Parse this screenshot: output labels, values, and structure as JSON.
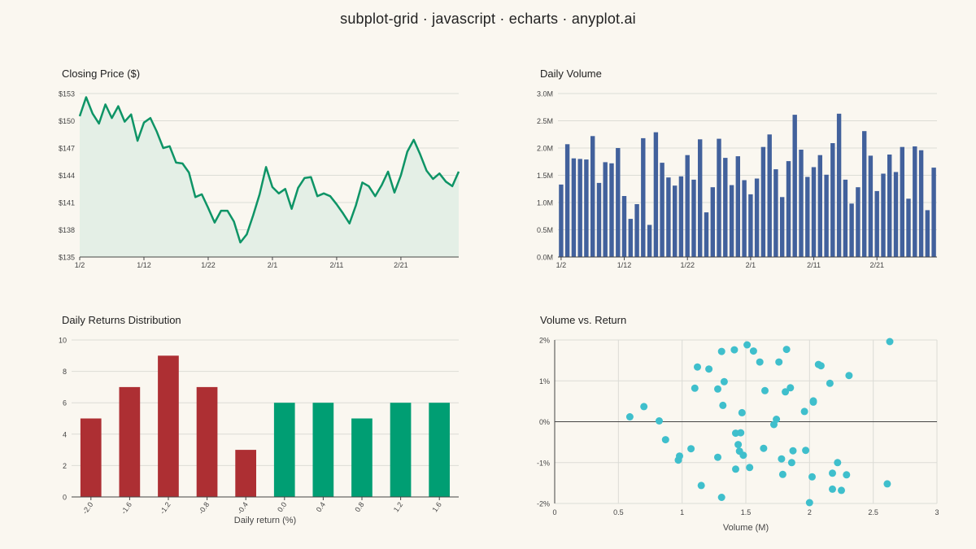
{
  "page": {
    "title": "subplot-grid · javascript · echarts · anyplot.ai"
  },
  "colors": {
    "background": "#faf7f0",
    "line": "#0e9466",
    "area": "#e4efe6",
    "bar_volume": "#42619c",
    "bar_negative": "#ad2f33",
    "bar_positive": "#009e73",
    "scatter": "#3fbfcc",
    "grid": "#dcdcd6",
    "axis": "#444444"
  },
  "chart_data": [
    {
      "id": "price",
      "type": "line",
      "title": "Closing Price ($)",
      "xlabel": "",
      "ylabel": "",
      "x_tick_labels": [
        "1/2",
        "1/12",
        "1/22",
        "2/1",
        "2/11",
        "2/21"
      ],
      "x_tick_index": [
        0,
        10,
        20,
        30,
        40,
        50
      ],
      "y_ticks": [
        135,
        138,
        141,
        144,
        147,
        150,
        153
      ],
      "y_tick_labels": [
        "$135",
        "$138",
        "$141",
        "$144",
        "$147",
        "$150",
        "$153"
      ],
      "ylim": [
        135,
        153
      ],
      "area_fill": true,
      "grid": true,
      "values": [
        150.5,
        152.6,
        150.8,
        149.7,
        151.8,
        150.3,
        151.6,
        149.9,
        150.7,
        147.8,
        149.8,
        150.3,
        148.8,
        147.0,
        147.2,
        145.4,
        145.3,
        144.3,
        141.6,
        141.9,
        140.4,
        138.8,
        140.1,
        140.1,
        138.9,
        136.6,
        137.5,
        139.6,
        141.9,
        144.9,
        142.7,
        142.0,
        142.5,
        140.3,
        142.6,
        143.7,
        143.8,
        141.7,
        142.0,
        141.7,
        140.8,
        139.8,
        138.7,
        140.7,
        143.2,
        142.8,
        141.7,
        142.9,
        144.4,
        142.1,
        144.0,
        146.6,
        147.9,
        146.3,
        144.5,
        143.6,
        144.2,
        143.3,
        142.8,
        144.4
      ]
    },
    {
      "id": "volume",
      "type": "bar",
      "title": "Daily Volume",
      "xlabel": "",
      "ylabel": "",
      "x_tick_labels": [
        "1/2",
        "1/12",
        "1/22",
        "2/1",
        "2/11",
        "2/21"
      ],
      "x_tick_index": [
        0,
        10,
        20,
        30,
        40,
        50
      ],
      "y_ticks": [
        0,
        0.5,
        1.0,
        1.5,
        2.0,
        2.5,
        3.0
      ],
      "y_tick_labels": [
        "0.0M",
        "0.5M",
        "1.0M",
        "1.5M",
        "2.0M",
        "2.5M",
        "3.0M"
      ],
      "ylim": [
        0,
        3.0
      ],
      "grid": true,
      "values": [
        1.33,
        2.07,
        1.81,
        1.8,
        1.79,
        2.22,
        1.36,
        1.74,
        1.72,
        2.0,
        1.12,
        0.7,
        0.97,
        2.18,
        0.59,
        2.29,
        1.73,
        1.46,
        1.31,
        1.48,
        1.87,
        1.42,
        2.16,
        0.82,
        1.28,
        2.17,
        1.82,
        1.32,
        1.85,
        1.41,
        1.15,
        1.44,
        2.02,
        2.25,
        1.61,
        1.1,
        1.76,
        2.61,
        1.97,
        1.47,
        1.65,
        1.87,
        1.51,
        2.09,
        2.63,
        1.42,
        0.98,
        1.28,
        2.31,
        1.86,
        1.21,
        1.53,
        1.88,
        1.56,
        2.02,
        1.07,
        2.03,
        1.96,
        0.86,
        1.64
      ]
    },
    {
      "id": "returns",
      "type": "bar",
      "title": "Daily Returns Distribution",
      "xlabel": "Daily return (%)",
      "ylabel": "",
      "categories": [
        "-2.0",
        "-1.6",
        "-1.2",
        "-0.8",
        "-0.4",
        "0.0",
        "0.4",
        "0.8",
        "1.2",
        "1.6"
      ],
      "values": [
        5,
        7,
        9,
        7,
        3,
        6,
        6,
        5,
        6,
        6
      ],
      "bar_sign": [
        "neg",
        "neg",
        "neg",
        "neg",
        "neg",
        "pos",
        "pos",
        "pos",
        "pos",
        "pos"
      ],
      "y_ticks": [
        0,
        2,
        4,
        6,
        8,
        10
      ],
      "y_tick_labels": [
        "0",
        "2",
        "4",
        "6",
        "8",
        "10"
      ],
      "ylim": [
        0,
        10
      ],
      "grid": true
    },
    {
      "id": "scatter",
      "type": "scatter",
      "title": "Volume vs. Return",
      "xlabel": "Volume (M)",
      "ylabel": "",
      "x_ticks": [
        0,
        0.5,
        1,
        1.5,
        2,
        2.5,
        3
      ],
      "x_tick_labels": [
        "0",
        "0.5",
        "1",
        "1.5",
        "2",
        "2.5",
        "3"
      ],
      "xlim": [
        0,
        3
      ],
      "y_ticks": [
        -2,
        -1,
        0,
        1,
        2
      ],
      "y_tick_labels": [
        "-2%",
        "-1%",
        "0%",
        "1%",
        "2%"
      ],
      "ylim": [
        -2,
        2
      ],
      "grid": true,
      "points": [
        [
          0.59,
          0.12
        ],
        [
          0.7,
          0.37
        ],
        [
          0.82,
          0.02
        ],
        [
          0.87,
          -0.44
        ],
        [
          0.97,
          -0.94
        ],
        [
          0.98,
          -0.84
        ],
        [
          1.07,
          -0.66
        ],
        [
          1.1,
          0.82
        ],
        [
          1.12,
          1.34
        ],
        [
          1.15,
          -1.56
        ],
        [
          1.21,
          1.29
        ],
        [
          1.28,
          -0.87
        ],
        [
          1.28,
          0.8
        ],
        [
          1.31,
          1.72
        ],
        [
          1.31,
          -1.85
        ],
        [
          1.32,
          0.4
        ],
        [
          1.33,
          0.98
        ],
        [
          1.41,
          1.76
        ],
        [
          1.42,
          -0.28
        ],
        [
          1.42,
          -1.16
        ],
        [
          1.44,
          -0.56
        ],
        [
          1.45,
          -0.72
        ],
        [
          1.46,
          -0.27
        ],
        [
          1.47,
          0.22
        ],
        [
          1.48,
          -0.82
        ],
        [
          1.51,
          1.88
        ],
        [
          1.53,
          -1.12
        ],
        [
          1.56,
          1.73
        ],
        [
          1.61,
          1.46
        ],
        [
          1.64,
          -0.65
        ],
        [
          1.65,
          0.76
        ],
        [
          1.72,
          -0.07
        ],
        [
          1.74,
          0.06
        ],
        [
          1.76,
          1.46
        ],
        [
          1.78,
          -0.91
        ],
        [
          1.79,
          -1.29
        ],
        [
          1.81,
          0.73
        ],
        [
          1.82,
          1.77
        ],
        [
          1.85,
          0.83
        ],
        [
          1.86,
          -1.0
        ],
        [
          1.87,
          -0.71
        ],
        [
          1.96,
          0.25
        ],
        [
          1.97,
          -0.7
        ],
        [
          2.0,
          -1.98
        ],
        [
          2.02,
          -1.35
        ],
        [
          2.03,
          0.48
        ],
        [
          2.03,
          0.51
        ],
        [
          2.07,
          1.4
        ],
        [
          2.09,
          1.37
        ],
        [
          2.16,
          0.94
        ],
        [
          2.18,
          -1.65
        ],
        [
          2.18,
          -1.26
        ],
        [
          2.22,
          -1.0
        ],
        [
          2.25,
          -1.68
        ],
        [
          2.29,
          -1.3
        ],
        [
          2.31,
          1.13
        ],
        [
          2.61,
          -1.52
        ],
        [
          2.63,
          1.96
        ]
      ]
    }
  ]
}
